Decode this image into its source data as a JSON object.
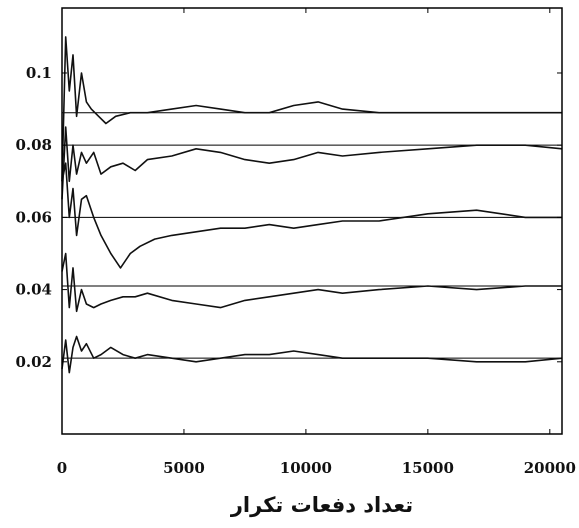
{
  "chart_data": {
    "type": "line",
    "title": "",
    "xlabel": "تعداد دفعات تکرار",
    "ylabel": "",
    "xlim": [
      0,
      20500
    ],
    "ylim": [
      0.0,
      0.118
    ],
    "x_ticks": [
      0,
      5000,
      10000,
      15000,
      20000
    ],
    "x_tick_labels": [
      "0",
      "5000",
      "10000",
      "15000",
      "20000"
    ],
    "y_ticks": [
      0.02,
      0.04,
      0.06,
      0.08,
      0.1
    ],
    "y_tick_labels": [
      "0.02",
      "0.04",
      "0.06",
      "0.08",
      "0.1"
    ],
    "grid": false,
    "reference_lines": [
      0.021,
      0.041,
      0.06,
      0.08,
      0.089
    ],
    "series": [
      {
        "x": [
          0,
          150,
          300,
          450,
          600,
          800,
          1000,
          1200,
          1500,
          1800,
          2200,
          2800,
          3500,
          4500,
          5500,
          6500,
          7500,
          8500,
          9500,
          10500,
          11500,
          13000,
          15000,
          17000,
          19000,
          20500
        ],
        "values": [
          0.07,
          0.11,
          0.095,
          0.105,
          0.088,
          0.1,
          0.092,
          0.09,
          0.088,
          0.086,
          0.088,
          0.089,
          0.089,
          0.09,
          0.091,
          0.09,
          0.089,
          0.089,
          0.091,
          0.092,
          0.09,
          0.089,
          0.089,
          0.089,
          0.089,
          0.089
        ]
      },
      {
        "x": [
          0,
          150,
          300,
          450,
          600,
          800,
          1000,
          1300,
          1600,
          2000,
          2500,
          3000,
          3500,
          4500,
          5500,
          6500,
          7500,
          8500,
          9500,
          10500,
          11500,
          13000,
          15000,
          17000,
          19000,
          20500
        ],
        "values": [
          0.065,
          0.085,
          0.07,
          0.08,
          0.072,
          0.078,
          0.075,
          0.078,
          0.072,
          0.074,
          0.075,
          0.073,
          0.076,
          0.077,
          0.079,
          0.078,
          0.076,
          0.075,
          0.076,
          0.078,
          0.077,
          0.078,
          0.079,
          0.08,
          0.08,
          0.079
        ]
      },
      {
        "x": [
          0,
          150,
          300,
          450,
          600,
          800,
          1000,
          1300,
          1600,
          2000,
          2400,
          2800,
          3200,
          3800,
          4500,
          5500,
          6500,
          7500,
          8500,
          9500,
          10500,
          11500,
          13000,
          15000,
          17000,
          19000,
          20500
        ],
        "values": [
          0.07,
          0.075,
          0.06,
          0.068,
          0.055,
          0.065,
          0.066,
          0.06,
          0.055,
          0.05,
          0.046,
          0.05,
          0.052,
          0.054,
          0.055,
          0.056,
          0.057,
          0.057,
          0.058,
          0.057,
          0.058,
          0.059,
          0.059,
          0.061,
          0.062,
          0.06,
          0.06
        ]
      },
      {
        "x": [
          0,
          150,
          300,
          450,
          600,
          800,
          1000,
          1300,
          1600,
          2000,
          2500,
          3000,
          3500,
          4500,
          5500,
          6500,
          7500,
          8500,
          9500,
          10500,
          11500,
          13000,
          15000,
          17000,
          19000,
          20500
        ],
        "values": [
          0.045,
          0.05,
          0.035,
          0.046,
          0.034,
          0.04,
          0.036,
          0.035,
          0.036,
          0.037,
          0.038,
          0.038,
          0.039,
          0.037,
          0.036,
          0.035,
          0.037,
          0.038,
          0.039,
          0.04,
          0.039,
          0.04,
          0.041,
          0.04,
          0.041,
          0.041
        ]
      },
      {
        "x": [
          0,
          150,
          300,
          450,
          600,
          800,
          1000,
          1300,
          1600,
          2000,
          2500,
          3000,
          3500,
          4500,
          5500,
          6500,
          7500,
          8500,
          9500,
          10500,
          11500,
          13000,
          15000,
          17000,
          19000,
          20500
        ],
        "values": [
          0.018,
          0.026,
          0.017,
          0.024,
          0.027,
          0.023,
          0.025,
          0.021,
          0.022,
          0.024,
          0.022,
          0.021,
          0.022,
          0.021,
          0.02,
          0.021,
          0.022,
          0.022,
          0.023,
          0.022,
          0.021,
          0.021,
          0.021,
          0.02,
          0.02,
          0.021
        ]
      }
    ]
  }
}
